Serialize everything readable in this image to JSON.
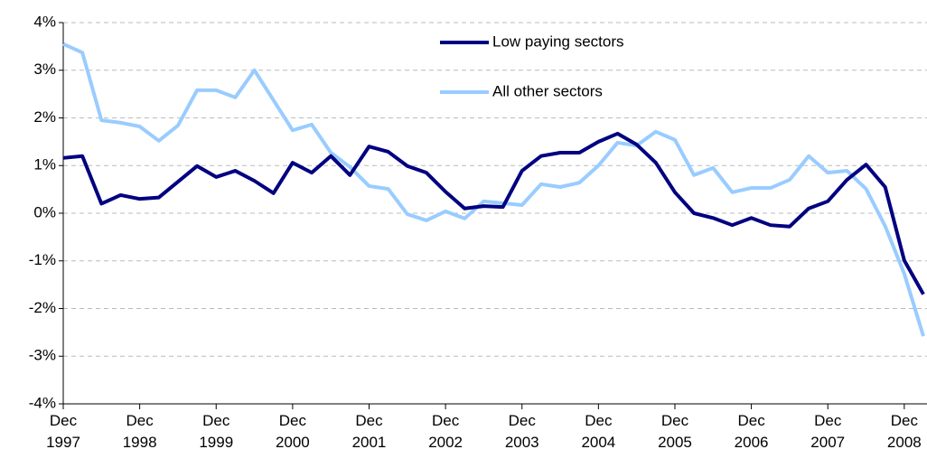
{
  "chart_data": {
    "type": "line",
    "categories": [
      "Dec 1997",
      null,
      null,
      null,
      "Dec 1998",
      null,
      null,
      null,
      "Dec 1999",
      null,
      null,
      null,
      "Dec 2000",
      null,
      null,
      null,
      "Dec 2001",
      null,
      null,
      null,
      "Dec 2002",
      null,
      null,
      null,
      "Dec 2003",
      null,
      null,
      null,
      "Dec 2004",
      null,
      null,
      null,
      "Dec 2005",
      null,
      null,
      null,
      "Dec 2006",
      null,
      null,
      null,
      "Dec 2007",
      null,
      null,
      null,
      "Dec 2008",
      null
    ],
    "series": [
      {
        "name": "Low paying sectors",
        "color": "#000080",
        "values": [
          1.16,
          1.2,
          0.2,
          0.38,
          0.3,
          0.33,
          0.66,
          0.99,
          0.76,
          0.89,
          0.68,
          0.42,
          1.06,
          0.85,
          1.2,
          0.8,
          1.4,
          1.29,
          0.99,
          0.85,
          0.45,
          0.1,
          0.15,
          0.13,
          0.89,
          1.2,
          1.27,
          1.27,
          1.5,
          1.67,
          1.44,
          1.06,
          0.44,
          0.0,
          -0.1,
          -0.25,
          -0.1,
          -0.25,
          -0.28,
          0.1,
          0.25,
          0.7,
          1.02,
          0.55,
          -0.99,
          -1.7
        ]
      },
      {
        "name": "All other sectors",
        "color": "#99ccff",
        "values": [
          3.55,
          3.37,
          1.95,
          1.9,
          1.82,
          1.52,
          1.84,
          2.58,
          2.58,
          2.43,
          3.0,
          2.37,
          1.74,
          1.86,
          1.27,
          0.97,
          0.57,
          0.51,
          -0.02,
          -0.15,
          0.04,
          -0.11,
          0.25,
          0.21,
          0.17,
          0.61,
          0.55,
          0.64,
          1.0,
          1.48,
          1.42,
          1.71,
          1.54,
          0.8,
          0.95,
          0.44,
          0.53,
          0.53,
          0.7,
          1.2,
          0.85,
          0.89,
          0.51,
          -0.27,
          -1.27,
          -2.58
        ]
      }
    ],
    "ylim": [
      -4,
      4
    ],
    "yticks": [
      {
        "value": -4,
        "label": "-4%"
      },
      {
        "value": -3,
        "label": "-3%"
      },
      {
        "value": -2,
        "label": "-2%"
      },
      {
        "value": -1,
        "label": "-1%"
      },
      {
        "value": 0,
        "label": "0%"
      },
      {
        "value": 1,
        "label": "1%"
      },
      {
        "value": 2,
        "label": "2%"
      },
      {
        "value": 3,
        "label": "3%"
      },
      {
        "value": 4,
        "label": "4%"
      }
    ],
    "grid": true
  }
}
